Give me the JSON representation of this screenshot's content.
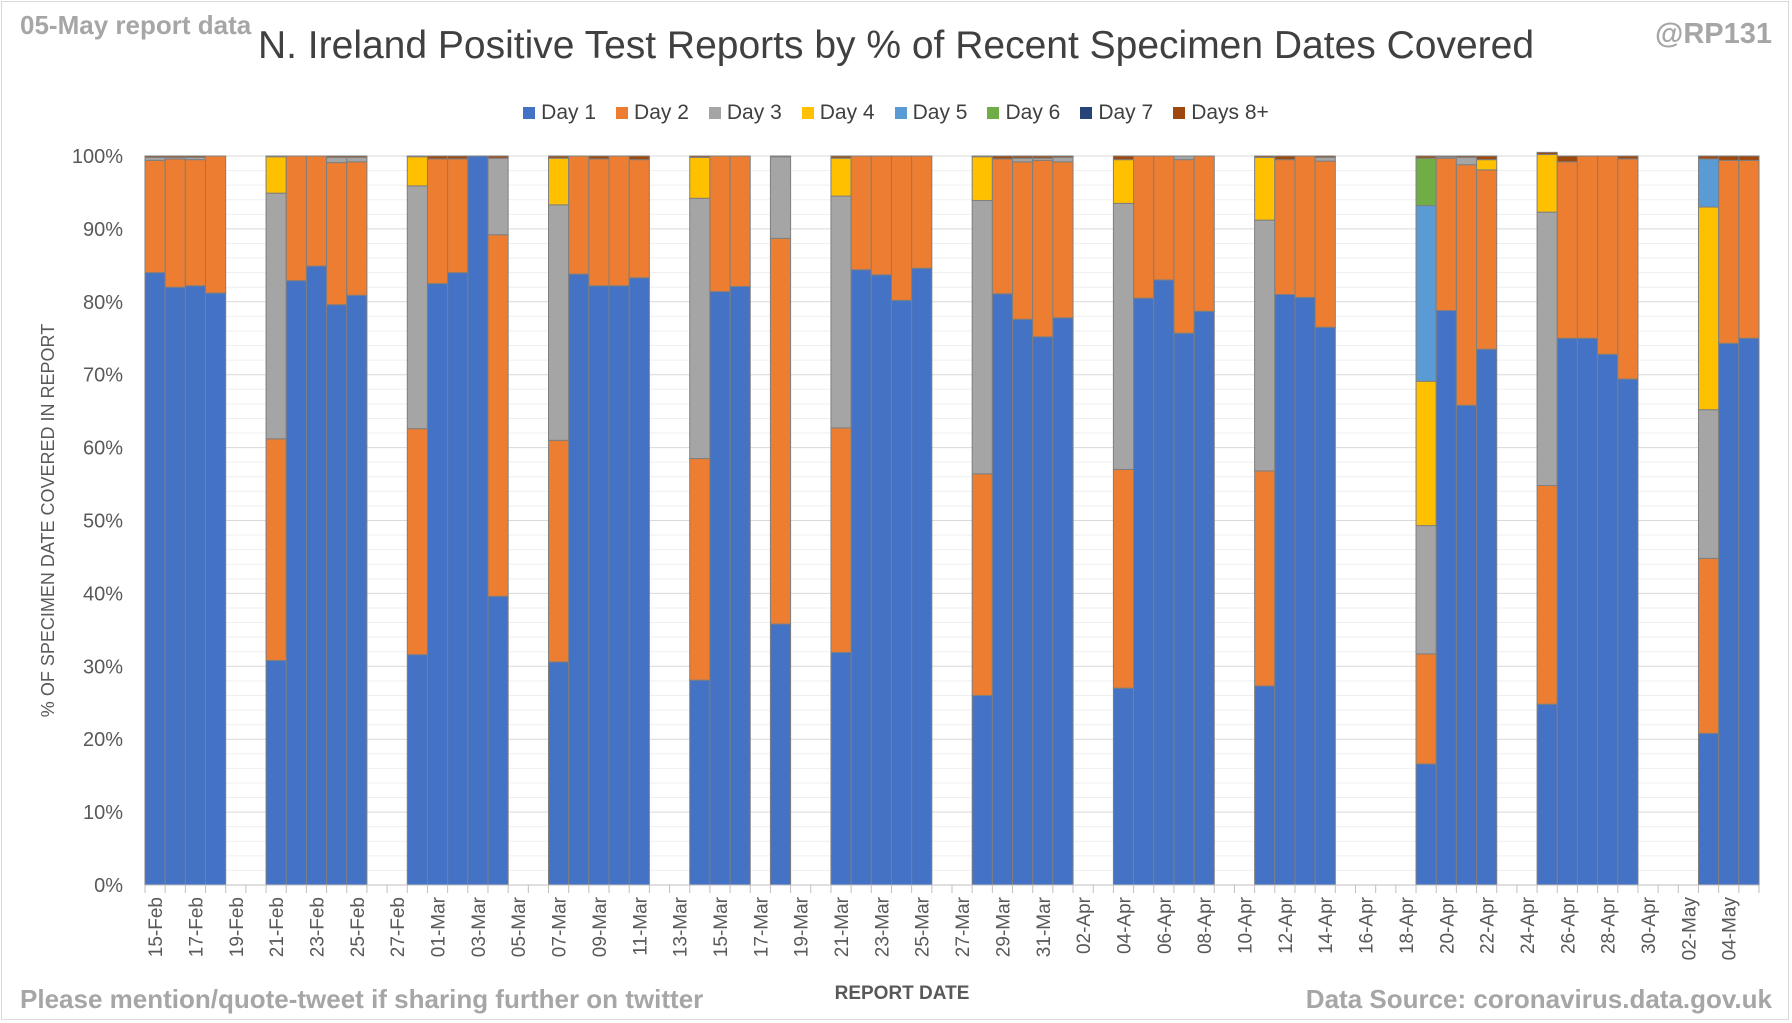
{
  "header": {
    "report_label": "05-May report data",
    "handle": "@RP131",
    "title": "N. Ireland Positive Test Reports by % of Recent Specimen Dates Covered"
  },
  "footer": {
    "share_note": "Please mention/quote-tweet if sharing further on twitter",
    "source": "Data Source: coronavirus.data.gov.uk"
  },
  "chart_data": {
    "type": "bar",
    "stacked": true,
    "title": "N. Ireland Positive Test Reports by % of Recent Specimen Dates Covered",
    "xlabel": "REPORT DATE",
    "ylabel": "% OF SPECIMEN DATE COVERED IN REPORT",
    "ylim": [
      0,
      100
    ],
    "yticks": [
      "0%",
      "10%",
      "20%",
      "30%",
      "40%",
      "50%",
      "60%",
      "70%",
      "80%",
      "90%",
      "100%"
    ],
    "grid": true,
    "legend_position": "top",
    "categories": [
      "15-Feb",
      "16-Feb",
      "17-Feb",
      "18-Feb",
      "19-Feb",
      "20-Feb",
      "21-Feb",
      "22-Feb",
      "23-Feb",
      "24-Feb",
      "25-Feb",
      "26-Feb",
      "27-Feb",
      "28-Feb",
      "01-Mar",
      "02-Mar",
      "03-Mar",
      "04-Mar",
      "05-Mar",
      "06-Mar",
      "07-Mar",
      "08-Mar",
      "09-Mar",
      "10-Mar",
      "11-Mar",
      "12-Mar",
      "13-Mar",
      "14-Mar",
      "15-Mar",
      "16-Mar",
      "17-Mar",
      "18-Mar",
      "19-Mar",
      "20-Mar",
      "21-Mar",
      "22-Mar",
      "23-Mar",
      "24-Mar",
      "25-Mar",
      "26-Mar",
      "27-Mar",
      "28-Mar",
      "29-Mar",
      "30-Mar",
      "31-Mar",
      "01-Apr",
      "02-Apr",
      "03-Apr",
      "04-Apr",
      "05-Apr",
      "06-Apr",
      "07-Apr",
      "08-Apr",
      "09-Apr",
      "10-Apr",
      "11-Apr",
      "12-Apr",
      "13-Apr",
      "14-Apr",
      "15-Apr",
      "16-Apr",
      "17-Apr",
      "18-Apr",
      "19-Apr",
      "20-Apr",
      "21-Apr",
      "22-Apr",
      "23-Apr",
      "24-Apr",
      "25-Apr",
      "26-Apr",
      "27-Apr",
      "28-Apr",
      "29-Apr",
      "30-Apr",
      "01-May",
      "02-May",
      "03-May",
      "04-May",
      "05-May"
    ],
    "xtick_labels": [
      "15-Feb",
      "17-Feb",
      "19-Feb",
      "21-Feb",
      "23-Feb",
      "25-Feb",
      "27-Feb",
      "01-Mar",
      "03-Mar",
      "05-Mar",
      "07-Mar",
      "09-Mar",
      "11-Mar",
      "13-Mar",
      "15-Mar",
      "17-Mar",
      "19-Mar",
      "21-Mar",
      "23-Mar",
      "25-Mar",
      "27-Mar",
      "29-Mar",
      "31-Mar",
      "02-Apr",
      "04-Apr",
      "06-Apr",
      "08-Apr",
      "10-Apr",
      "12-Apr",
      "14-Apr",
      "16-Apr",
      "18-Apr",
      "20-Apr",
      "22-Apr",
      "24-Apr",
      "26-Apr",
      "28-Apr",
      "30-Apr",
      "02-May",
      "04-May"
    ],
    "series": [
      {
        "name": "Day 1",
        "color": "#4472c4",
        "values": [
          84,
          82,
          82.2,
          81.2,
          0,
          0,
          30.8,
          82.9,
          84.9,
          79.6,
          80.9,
          0,
          0,
          31.6,
          82.5,
          84,
          100,
          39.6,
          0,
          0,
          30.6,
          83.8,
          82.2,
          82.2,
          83.3,
          0,
          0,
          28.1,
          81.4,
          82.1,
          0,
          35.8,
          0,
          0,
          31.9,
          84.4,
          83.7,
          80.2,
          84.6,
          0,
          0,
          26,
          81.1,
          77.6,
          75.2,
          77.8,
          0,
          0,
          27,
          80.5,
          83,
          75.7,
          78.7,
          0,
          0,
          27.3,
          81,
          80.6,
          76.5,
          0,
          0,
          0,
          0,
          16.6,
          78.8,
          65.8,
          73.5,
          0,
          0,
          24.8,
          75,
          75,
          72.8,
          69.4,
          0,
          0,
          0,
          20.8,
          74.3,
          75
        ]
      },
      {
        "name": "Day 2",
        "color": "#ed7d31",
        "values": [
          15.4,
          17.6,
          17.3,
          18.8,
          0,
          0,
          30.4,
          17.1,
          15.1,
          19.5,
          18.3,
          0,
          0,
          31,
          17.1,
          15.6,
          0,
          49.6,
          0,
          0,
          30.4,
          16.2,
          17.4,
          17.8,
          16.2,
          0,
          0,
          30.4,
          18.6,
          17.9,
          0,
          52.9,
          0,
          0,
          30.8,
          15.6,
          16.3,
          19.8,
          15.4,
          0,
          0,
          30.4,
          18.5,
          21.6,
          24.2,
          21.4,
          0,
          0,
          30,
          19.5,
          17,
          23.8,
          21.3,
          0,
          0,
          29.5,
          18.5,
          19.4,
          22.8,
          0,
          0,
          0,
          0,
          15.1,
          20.9,
          33,
          24.6,
          0,
          0,
          30,
          24.2,
          25,
          27.2,
          30.2,
          0,
          0,
          0,
          24,
          25.1,
          24.4
        ]
      },
      {
        "name": "Day 3",
        "color": "#a5a5a5",
        "values": [
          0.4,
          0.2,
          0.3,
          0,
          0,
          0,
          33.7,
          0,
          0,
          0.7,
          0.6,
          0,
          0,
          33.3,
          0,
          0,
          0,
          10.5,
          0,
          0,
          32.3,
          0,
          0,
          0,
          0,
          0,
          0,
          35.7,
          0,
          0,
          0,
          11.2,
          0,
          0,
          31.8,
          0,
          0,
          0,
          0,
          0,
          0,
          37.5,
          0,
          0.5,
          0.3,
          0.6,
          0,
          0,
          36.5,
          0,
          0,
          0.5,
          0,
          0,
          0,
          34.4,
          0,
          0,
          0.5,
          0,
          0,
          0,
          0,
          17.6,
          0.2,
          1,
          0,
          0,
          0,
          37.5,
          0,
          0,
          0,
          0,
          0,
          0,
          0,
          20.4,
          0,
          0
        ]
      },
      {
        "name": "Day 4",
        "color": "#ffc000",
        "values": [
          0,
          0,
          0,
          0,
          0,
          0,
          5,
          0,
          0,
          0,
          0,
          0,
          0,
          4,
          0,
          0,
          0,
          0,
          0,
          0,
          6.4,
          0,
          0,
          0,
          0,
          0,
          0,
          5.6,
          0,
          0,
          0,
          0,
          0,
          0,
          5.2,
          0,
          0,
          0,
          0,
          0,
          0,
          6,
          0,
          0,
          0,
          0,
          0,
          0,
          6,
          0,
          0,
          0,
          0,
          0,
          0,
          8.6,
          0,
          0,
          0,
          0,
          0,
          0,
          0,
          19.8,
          0,
          0,
          1.4,
          0,
          0,
          7.9,
          0,
          0,
          0,
          0,
          0,
          0,
          0,
          27.8,
          0,
          0
        ]
      },
      {
        "name": "Day 5",
        "color": "#5b9bd5",
        "values": [
          0,
          0,
          0,
          0,
          0,
          0,
          0,
          0,
          0,
          0,
          0,
          0,
          0,
          0,
          0,
          0,
          0,
          0,
          0,
          0,
          0,
          0,
          0,
          0,
          0,
          0,
          0,
          0,
          0,
          0,
          0,
          0,
          0,
          0,
          0,
          0,
          0,
          0,
          0,
          0,
          0,
          0,
          0,
          0,
          0,
          0,
          0,
          0,
          0,
          0,
          0,
          0,
          0,
          0,
          0,
          0,
          0,
          0,
          0,
          0,
          0,
          0,
          0,
          24.1,
          0,
          0,
          0,
          0,
          0,
          0,
          0,
          0,
          0,
          0,
          0,
          0,
          0,
          6.6,
          0,
          0
        ]
      },
      {
        "name": "Day 6",
        "color": "#70ad47",
        "values": [
          0,
          0,
          0,
          0,
          0,
          0,
          0,
          0,
          0,
          0,
          0,
          0,
          0,
          0,
          0,
          0,
          0,
          0,
          0,
          0,
          0,
          0,
          0,
          0,
          0,
          0,
          0,
          0,
          0,
          0,
          0,
          0,
          0,
          0,
          0,
          0,
          0,
          0,
          0,
          0,
          0,
          0,
          0,
          0,
          0,
          0,
          0,
          0,
          0,
          0,
          0,
          0,
          0,
          0,
          0,
          0,
          0,
          0,
          0,
          0,
          0,
          0,
          0,
          6.5,
          0,
          0,
          0,
          0,
          0,
          0,
          0,
          0,
          0,
          0,
          0,
          0,
          0,
          0,
          0,
          0
        ]
      },
      {
        "name": "Day 7",
        "color": "#264478",
        "values": [
          0,
          0,
          0,
          0,
          0,
          0,
          0,
          0,
          0,
          0,
          0,
          0,
          0,
          0,
          0,
          0,
          0,
          0,
          0,
          0,
          0,
          0,
          0,
          0,
          0,
          0,
          0,
          0,
          0,
          0,
          0,
          0,
          0,
          0,
          0,
          0,
          0,
          0,
          0,
          0,
          0,
          0,
          0,
          0,
          0,
          0,
          0,
          0,
          0,
          0,
          0,
          0,
          0,
          0,
          0,
          0,
          0,
          0,
          0,
          0,
          0,
          0,
          0,
          0,
          0,
          0,
          0,
          0,
          0,
          0,
          0,
          0,
          0,
          0,
          0,
          0,
          0,
          0,
          0,
          0
        ]
      },
      {
        "name": "Days 8+",
        "color": "#9e480e",
        "values": [
          0.2,
          0.2,
          0.2,
          0,
          0,
          0,
          0.1,
          0,
          0,
          0.2,
          0.2,
          0,
          0,
          0.1,
          0.4,
          0.4,
          0,
          0.3,
          0,
          0,
          0.3,
          0,
          0.4,
          0,
          0.5,
          0,
          0,
          0.2,
          0,
          0,
          0,
          0.1,
          0,
          0,
          0.3,
          0,
          0,
          0,
          0,
          0,
          0,
          0.1,
          0.4,
          0.3,
          0.3,
          0.2,
          0,
          0,
          0.5,
          0,
          0,
          0,
          0,
          0,
          0,
          0.2,
          0.5,
          0,
          0.2,
          0,
          0,
          0,
          0,
          0.3,
          0.1,
          0.2,
          0.5,
          0,
          0,
          0.3,
          0.8,
          0,
          0,
          0.4,
          0,
          0,
          0,
          0.4,
          0.6,
          0.6
        ]
      }
    ]
  }
}
